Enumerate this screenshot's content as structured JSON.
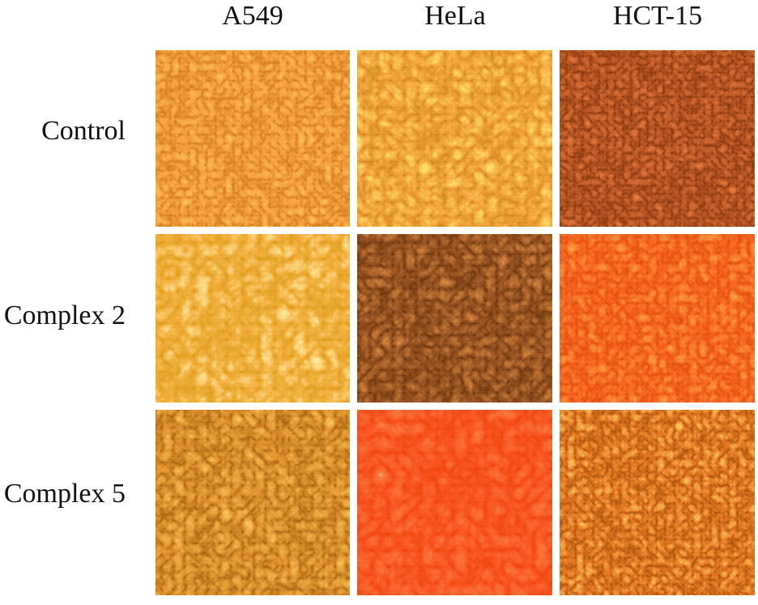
{
  "columns": [
    "A549",
    "HeLa",
    "HCT-15"
  ],
  "rows": [
    "Control",
    "Complex 2",
    "Complex 5"
  ]
}
